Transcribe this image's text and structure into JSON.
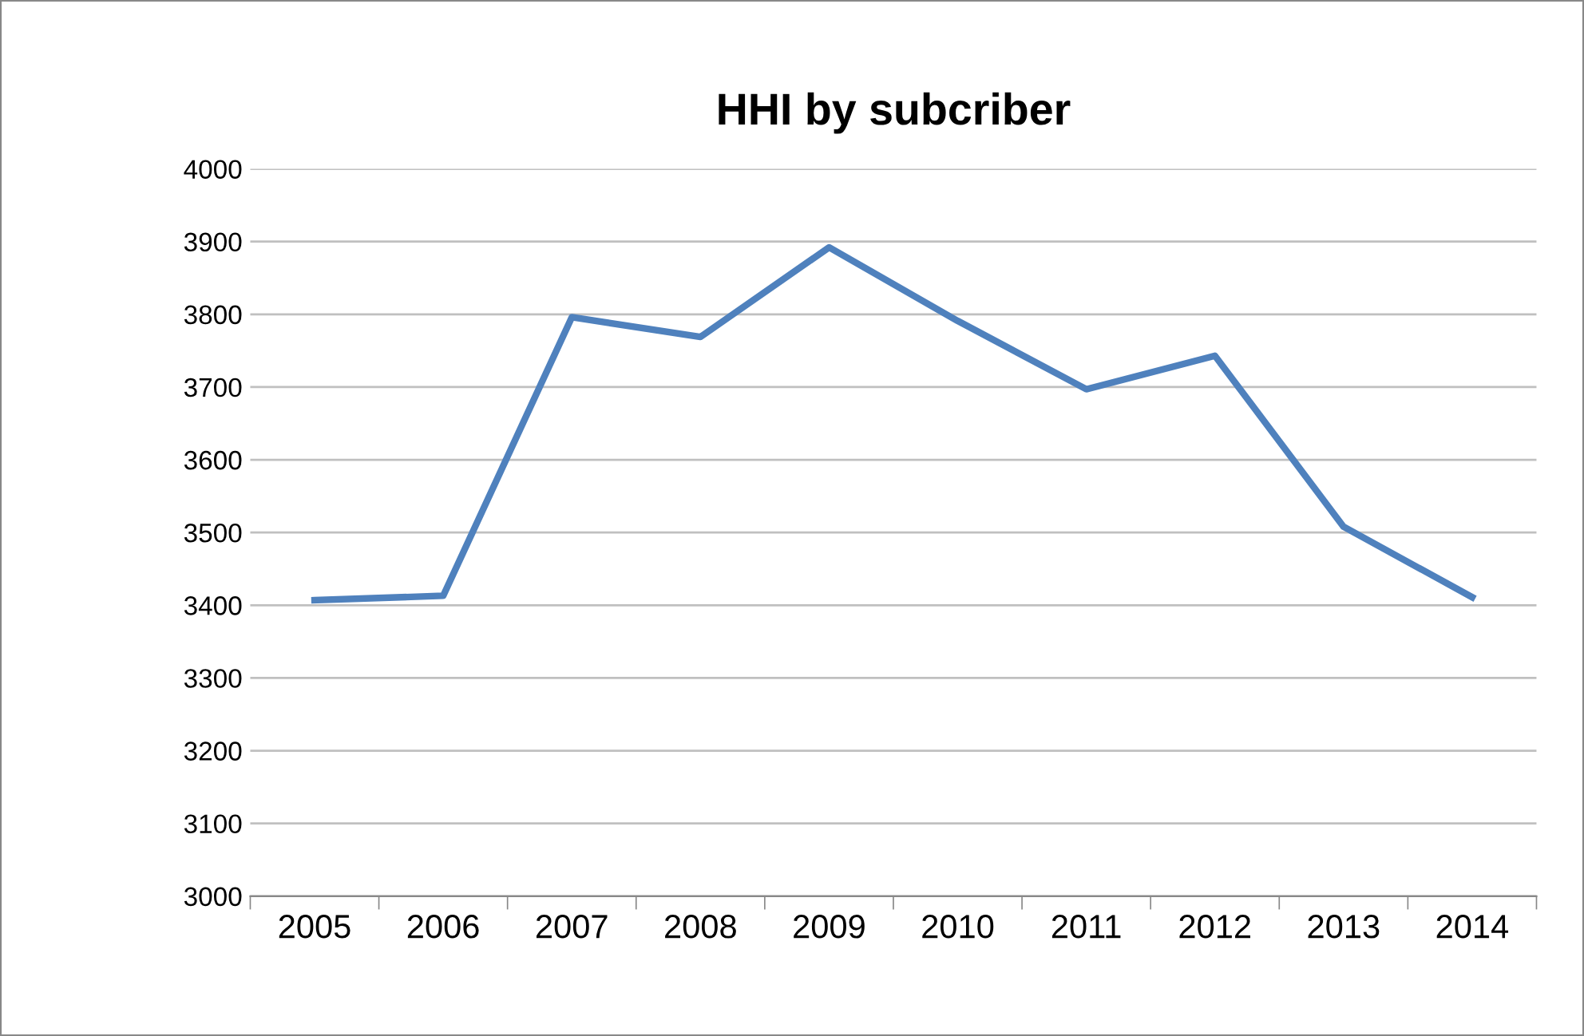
{
  "chart_data": {
    "type": "line",
    "title": "HHI by subcriber",
    "categories": [
      "2005",
      "2006",
      "2007",
      "2008",
      "2009",
      "2010",
      "2011",
      "2012",
      "2013",
      "2014"
    ],
    "series": [
      {
        "color": "#4f81bd",
        "values": [
          3407,
          3413,
          3796,
          3769,
          3892,
          3791,
          3697,
          3743,
          3508,
          3411
        ]
      }
    ],
    "ylim": [
      3000,
      4000
    ],
    "yticks": [
      3000,
      3100,
      3200,
      3300,
      3400,
      3500,
      3600,
      3700,
      3800,
      3900,
      4000
    ],
    "grid": "y",
    "legend": false,
    "marker": "none",
    "line_style": "solid"
  }
}
